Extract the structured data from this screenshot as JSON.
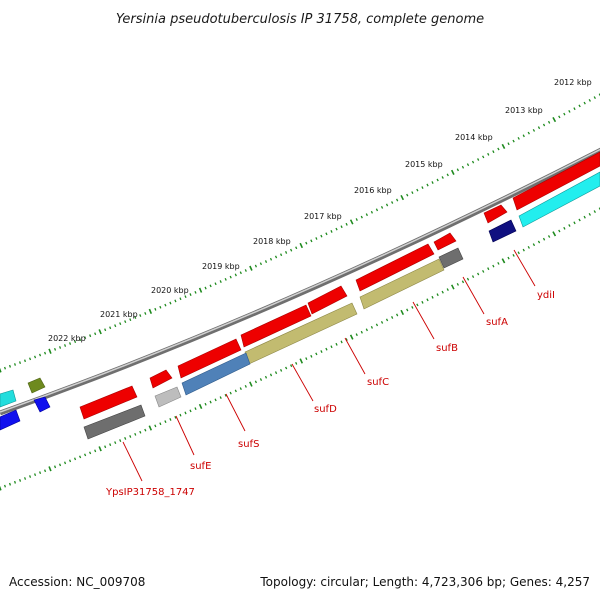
{
  "title": "Yersinia pseudotuberculosis IP 31758, complete genome",
  "scale_labels": [
    "2012 kbp",
    "2013 kbp",
    "2014 kbp",
    "2015 kbp",
    "2016 kbp",
    "2017 kbp",
    "2018 kbp",
    "2019 kbp",
    "2020 kbp",
    "2021 kbp",
    "2022 kbp"
  ],
  "gene_labels": [
    "ydiI",
    "sufA",
    "sufB",
    "sufC",
    "sufD",
    "sufS",
    "sufE",
    "YpsIP31758_1747"
  ],
  "footer": {
    "accession": "Accession: NC_009708",
    "summary": "Topology: circular; Length: 4,723,306 bp; Genes: 4,257"
  },
  "colors": {
    "backbone": "#8c8c8c",
    "scale_ticks": "#1e8a1e",
    "feature_red": "#ee0000",
    "feature_gray": "#6e6e6e",
    "feature_olive": "#c2bb70",
    "feature_steelblue": "#4f81b8",
    "feature_cyan": "#22eeee",
    "feature_navy": "#101080",
    "feature_blue": "#1010ee",
    "feature_green": "#6e8a1e",
    "label_red": "#cc0000"
  }
}
